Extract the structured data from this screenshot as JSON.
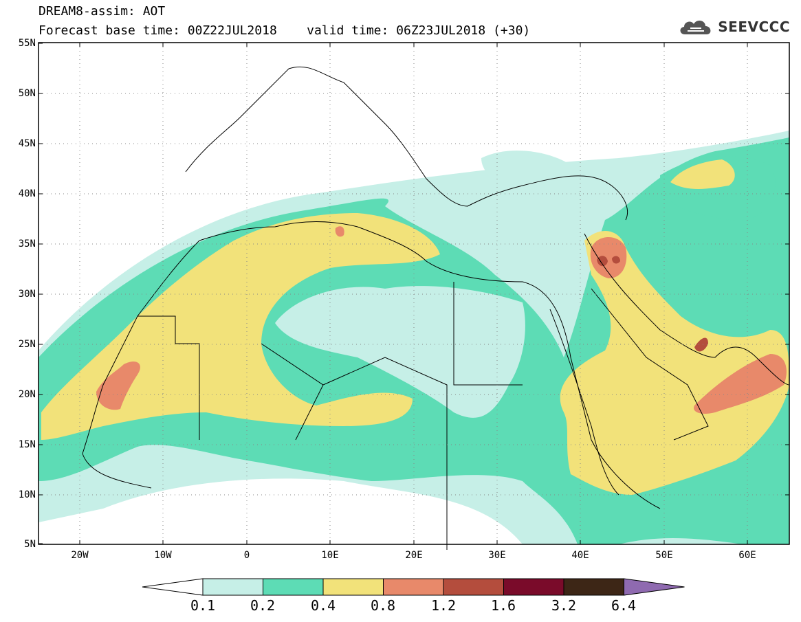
{
  "header": {
    "model_line": "DREAM8-assim: AOT",
    "time_line": "Forecast base time: 00Z22JUL2018    valid time: 06Z23JUL2018 (+30)"
  },
  "logo": {
    "text": "SEEVCCC",
    "icon": "cloud-icon"
  },
  "map": {
    "extent": {
      "lon_min": -25,
      "lon_max": 65,
      "lat_min": 5,
      "lat_max": 55
    },
    "y_ticks": [
      "55N",
      "50N",
      "45N",
      "40N",
      "35N",
      "30N",
      "25N",
      "20N",
      "15N",
      "10N",
      "5N"
    ],
    "x_ticks": [
      "20W",
      "10W",
      "0",
      "10E",
      "20E",
      "30E",
      "40E",
      "50E",
      "60E"
    ],
    "grid": "dotted"
  },
  "legend": {
    "labels": [
      "0.1",
      "0.2",
      "0.4",
      "0.8",
      "1.2",
      "1.6",
      "3.2",
      "6.4"
    ],
    "colors": [
      "#ffffff",
      "#c6efe7",
      "#5ddcb5",
      "#f2e27a",
      "#e8896a",
      "#b44d3d",
      "#7a0b2a",
      "#3d2616",
      "#8f6ab0"
    ]
  }
}
